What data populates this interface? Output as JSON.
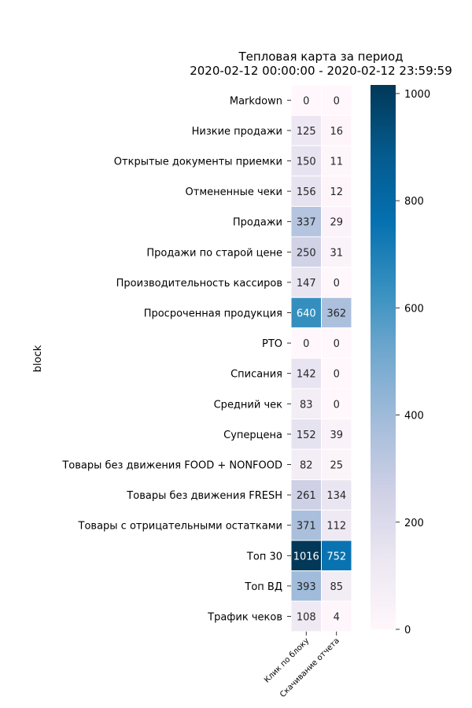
{
  "chart_data": {
    "type": "heatmap",
    "title_line1": "Тепловая карта за период",
    "title_line2": "2020-02-12 00:00:00 - 2020-02-12 23:59:59",
    "ylabel": "block",
    "xlabel": "",
    "columns": [
      "Клик по блоку",
      "Скачивание отчета"
    ],
    "rows": [
      "Markdown",
      "Низкие продажи",
      "Открытые документы приемки",
      "Отмененные чеки",
      "Продажи",
      "Продажи по старой цене",
      "Производительность кассиров",
      "Просроченная продукция",
      "РТО",
      "Списания",
      "Средний чек",
      "Суперцена",
      "Товары без движения FOOD + NONFOOD",
      "Товары без движения FRESH",
      "Товары с отрицательными остатками",
      "Топ 30",
      "Топ ВД",
      "Трафик чеков"
    ],
    "values": [
      [
        0,
        0
      ],
      [
        125,
        16
      ],
      [
        150,
        11
      ],
      [
        156,
        12
      ],
      [
        337,
        29
      ],
      [
        250,
        31
      ],
      [
        147,
        0
      ],
      [
        640,
        362
      ],
      [
        0,
        0
      ],
      [
        142,
        0
      ],
      [
        83,
        0
      ],
      [
        152,
        39
      ],
      [
        82,
        25
      ],
      [
        261,
        134
      ],
      [
        371,
        112
      ],
      [
        1016,
        752
      ],
      [
        393,
        85
      ],
      [
        108,
        4
      ]
    ],
    "colormap": "PuBu",
    "vmin": 0,
    "vmax": 1016,
    "colorbar_ticks": [
      0,
      200,
      400,
      600,
      800,
      1000
    ]
  }
}
